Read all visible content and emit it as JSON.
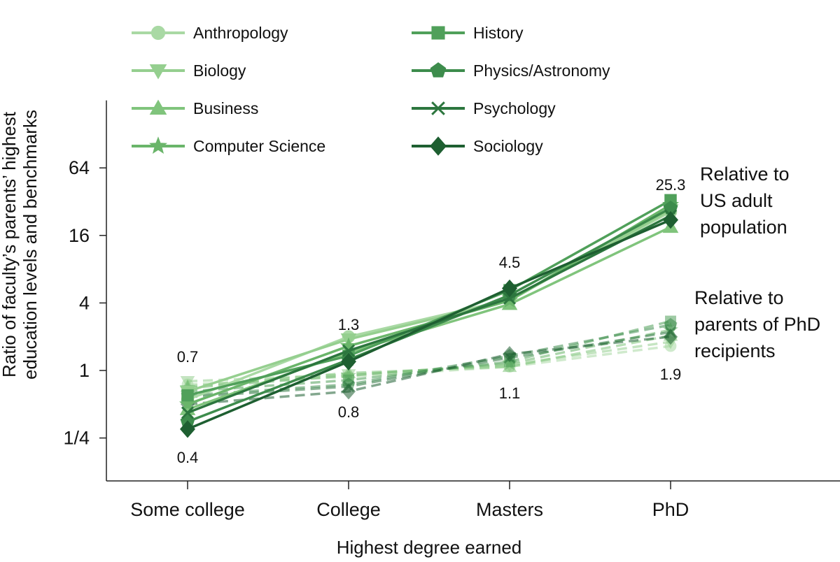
{
  "chart_data": {
    "type": "line",
    "xlabel": "Highest degree earned",
    "ylabel_lines": [
      "Ratio of faculty’s parents’ highest",
      "education levels and benchmarks"
    ],
    "categories": [
      "Some college",
      "College",
      "Masters",
      "PhD"
    ],
    "yscale": "log2",
    "ylim": [
      0.125,
      256
    ],
    "yticks": [
      {
        "value": 0.25,
        "label": "1/4"
      },
      {
        "value": 1,
        "label": "1"
      },
      {
        "value": 4,
        "label": "4"
      },
      {
        "value": 16,
        "label": "16"
      },
      {
        "value": 64,
        "label": "64"
      }
    ],
    "legend_placement": "top-left",
    "groups": [
      {
        "id": "us_adult",
        "label_lines": [
          "Relative to",
          "US adult",
          "population"
        ],
        "style": "solid"
      },
      {
        "id": "phd_parents",
        "label_lines": [
          "Relative to",
          "parents of PhD",
          "recipients"
        ],
        "style": "dashed"
      }
    ],
    "series": [
      {
        "name": "Anthropology",
        "marker": "circle",
        "color": "#a9d9a4",
        "us_adult": [
          0.55,
          2.0,
          4.3,
          26
        ],
        "phd_parents": [
          0.75,
          0.88,
          1.08,
          1.65
        ]
      },
      {
        "name": "Biology",
        "marker": "triangle-down",
        "color": "#95cf8f",
        "us_adult": [
          0.65,
          1.9,
          4.2,
          27
        ],
        "phd_parents": [
          0.8,
          0.92,
          1.12,
          1.8
        ]
      },
      {
        "name": "Business",
        "marker": "triangle-up",
        "color": "#80c47c",
        "us_adult": [
          0.45,
          1.45,
          3.9,
          19
        ],
        "phd_parents": [
          0.72,
          0.95,
          1.08,
          2.05
        ]
      },
      {
        "name": "Computer Science",
        "marker": "star",
        "color": "#6ab56a",
        "us_adult": [
          0.5,
          1.65,
          4.2,
          30
        ],
        "phd_parents": [
          0.7,
          0.9,
          1.15,
          2.3
        ]
      },
      {
        "name": "History",
        "marker": "square",
        "color": "#50a05a",
        "us_adult": [
          0.6,
          1.35,
          5.2,
          33
        ],
        "phd_parents": [
          0.65,
          0.82,
          1.2,
          2.75
        ]
      },
      {
        "name": "Physics/Astronomy",
        "marker": "pentagon",
        "color": "#3d8c4c",
        "us_adult": [
          0.35,
          1.25,
          4.7,
          28
        ],
        "phd_parents": [
          0.6,
          0.75,
          1.35,
          2.55
        ]
      },
      {
        "name": "Psychology",
        "marker": "x",
        "color": "#2c763e",
        "us_adult": [
          0.42,
          1.5,
          4.4,
          24
        ],
        "phd_parents": [
          0.58,
          0.72,
          1.3,
          2.2
        ]
      },
      {
        "name": "Sociology",
        "marker": "diamond",
        "color": "#1e5f31",
        "us_adult": [
          0.3,
          1.2,
          5.4,
          22
        ],
        "phd_parents": [
          0.5,
          0.65,
          1.4,
          2.0
        ]
      }
    ],
    "value_labels": [
      {
        "group": "us_adult",
        "x": "Some college",
        "text": "0.4",
        "pos": "below"
      },
      {
        "group": "us_adult",
        "x": "College",
        "text": "1.3",
        "pos": "above"
      },
      {
        "group": "us_adult",
        "x": "Masters",
        "text": "4.5",
        "pos": "above"
      },
      {
        "group": "us_adult",
        "x": "PhD",
        "text": "25.3",
        "pos": "above"
      },
      {
        "group": "phd_parents",
        "x": "Some college",
        "text": "0.7",
        "pos": "above"
      },
      {
        "group": "phd_parents",
        "x": "College",
        "text": "0.8",
        "pos": "below"
      },
      {
        "group": "phd_parents",
        "x": "Masters",
        "text": "1.1",
        "pos": "below"
      },
      {
        "group": "phd_parents",
        "x": "PhD",
        "text": "1.9",
        "pos": "below"
      }
    ]
  }
}
